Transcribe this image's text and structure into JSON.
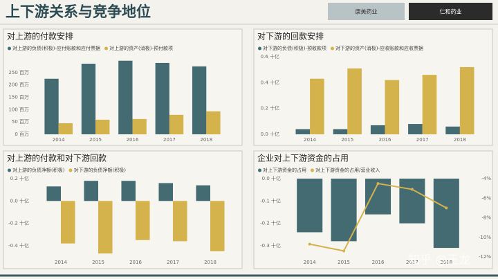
{
  "header": {
    "title": "上下游关系与竞争地位",
    "tabs": [
      "康美药业",
      "仁和药业"
    ],
    "active_tab": 1
  },
  "watermark": "知乎 @王龙",
  "chart_data": [
    {
      "type": "bar",
      "title": "对上游的付款安排",
      "categories": [
        "2014",
        "2015",
        "2016",
        "2017",
        "2018"
      ],
      "series": [
        {
          "name": "对上游的负债(积极)-应付账款和应付票据",
          "color": "#446a72",
          "values": [
            225,
            286,
            298,
            289,
            275
          ]
        },
        {
          "name": "对上游的资产(消极)-预付款项",
          "color": "#d4b24c",
          "values": [
            45,
            59,
            62,
            79,
            93
          ]
        }
      ],
      "ylim": [
        0,
        300
      ],
      "yticks": [
        {
          "value": 0,
          "label": "0 百万"
        },
        {
          "value": 50,
          "label": "50 百万"
        },
        {
          "value": 100,
          "label": "100 百万"
        },
        {
          "value": 150,
          "label": "150 百万"
        },
        {
          "value": 200,
          "label": "200 百万"
        },
        {
          "value": 250,
          "label": "250 百万"
        }
      ]
    },
    {
      "type": "bar",
      "title": "对下游的回款安排",
      "categories": [
        "2014",
        "2015",
        "2016",
        "2017",
        "2018"
      ],
      "series": [
        {
          "name": "对下游的负债(积极)-预收款项",
          "color": "#446a72",
          "values": [
            0.04,
            0.04,
            0.07,
            0.08,
            0.06
          ]
        },
        {
          "name": "对下游的资产(消极)-应收账款和应收票据",
          "color": "#d4b24c",
          "values": [
            0.43,
            0.51,
            0.42,
            0.46,
            0.52
          ]
        }
      ],
      "ylim": [
        0,
        0.6
      ],
      "yticks": [
        {
          "value": 0,
          "label": "0.0 十亿"
        },
        {
          "value": 0.2,
          "label": "0.2 十亿"
        },
        {
          "value": 0.4,
          "label": "0.4 十亿"
        },
        {
          "value": 0.6,
          "label": "0.6 十亿"
        }
      ]
    },
    {
      "type": "bar",
      "title": "对上游的付款和对下游回款",
      "categories": [
        "2014",
        "2015",
        "2016",
        "2017",
        "2018"
      ],
      "series": [
        {
          "name": "对上游的负债净额(积极)",
          "color": "#446a72",
          "values": [
            0.13,
            0.18,
            0.18,
            0.16,
            0.14
          ]
        },
        {
          "name": "对下游的负债净额(积极)",
          "color": "#d4b24c",
          "values": [
            -0.38,
            -0.47,
            -0.35,
            -0.36,
            -0.45
          ]
        }
      ],
      "ylim": [
        -0.5,
        0.2
      ],
      "yticks": [
        {
          "value": 0.2,
          "label": "0.2 十亿"
        },
        {
          "value": 0,
          "label": "0.0 十亿"
        },
        {
          "value": -0.2,
          "label": "-0.2 十亿"
        },
        {
          "value": -0.4,
          "label": "-0.4 十亿"
        }
      ]
    },
    {
      "type": "bar",
      "title": "企业对上下游资金的占用",
      "categories": [
        "2014",
        "2015",
        "2016",
        "2017",
        "2018"
      ],
      "series": [
        {
          "name": "对上下游资金的占用",
          "color": "#446a72",
          "values": [
            -0.24,
            -0.28,
            -0.16,
            -0.2,
            -0.31
          ]
        },
        {
          "name": "对上下游资金的占用/营业收入",
          "color": "#d4b24c",
          "type": "line",
          "axis": "y2",
          "values": [
            -10.7,
            -11.4,
            -4.5,
            -5.1,
            -7.0
          ]
        }
      ],
      "ylim": [
        -0.35,
        0
      ],
      "yticks": [
        {
          "value": 0,
          "label": "0.0 十亿"
        },
        {
          "value": -0.1,
          "label": "-0.1 十亿"
        },
        {
          "value": -0.2,
          "label": "-0.2 十亿"
        },
        {
          "value": -0.3,
          "label": "-0.3 十亿"
        }
      ],
      "y2lim": [
        -12,
        -4
      ],
      "y2ticks": [
        {
          "value": -4,
          "label": "-4%"
        },
        {
          "value": -6,
          "label": "-6%"
        },
        {
          "value": -8,
          "label": "-8%"
        },
        {
          "value": -10,
          "label": "-10%"
        },
        {
          "value": -12,
          "label": "-12%"
        }
      ]
    }
  ]
}
